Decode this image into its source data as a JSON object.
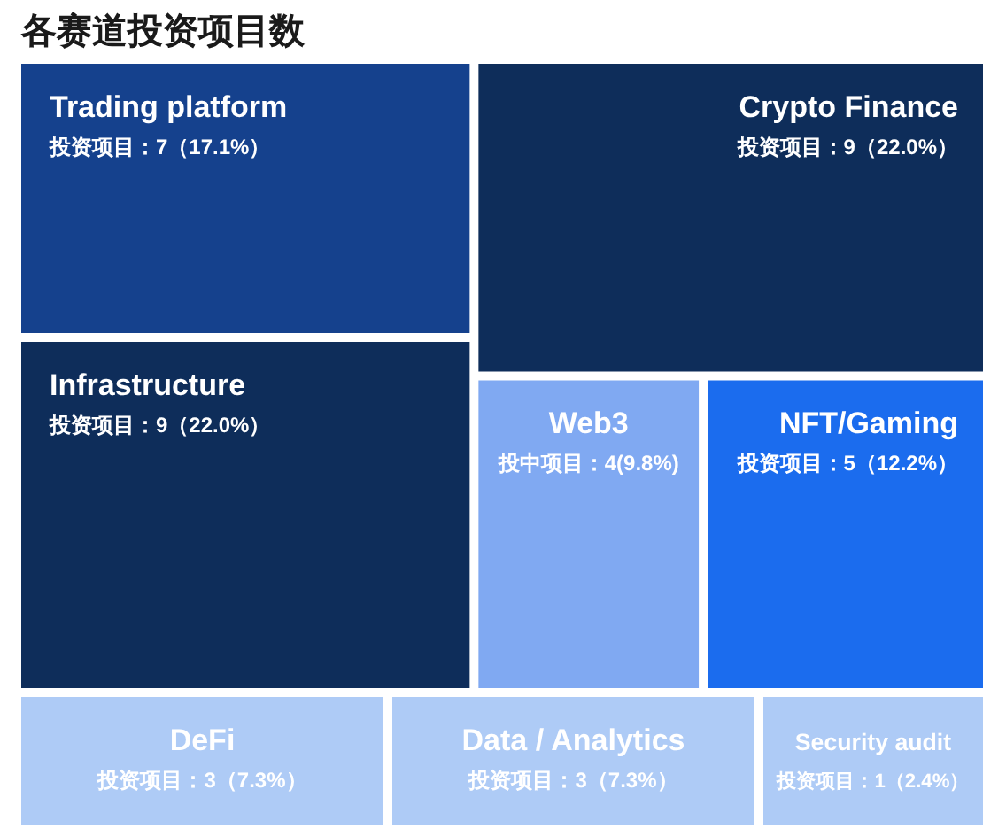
{
  "chart_data": {
    "type": "other",
    "title": "各赛道投资项目数",
    "categories": [
      "Trading platform",
      "Crypto Finance",
      "Infrastructure",
      "Web3",
      "NFT/Gaming",
      "DeFi",
      "Data / Analytics",
      "Security audit"
    ],
    "values": [
      7,
      9,
      9,
      4,
      5,
      3,
      3,
      1
    ],
    "colors": [
      "#15418d",
      "#0e2d5a",
      "#0e2d5a",
      "#80a9f2",
      "#1b6cee",
      "#aecbf6",
      "#aecbf6",
      "#aecbf6"
    ],
    "value_labels": [
      "投资项目：7（17.1%）",
      "投资项目：9（22.0%）",
      "投资项目：9（22.0%）",
      "投中项目：4(9.8%)",
      "投资项目：5（12.2%）",
      "投资项目：3（7.3%）",
      "投资项目：3（7.3%）",
      "投资项目：1（2.4%）"
    ]
  }
}
